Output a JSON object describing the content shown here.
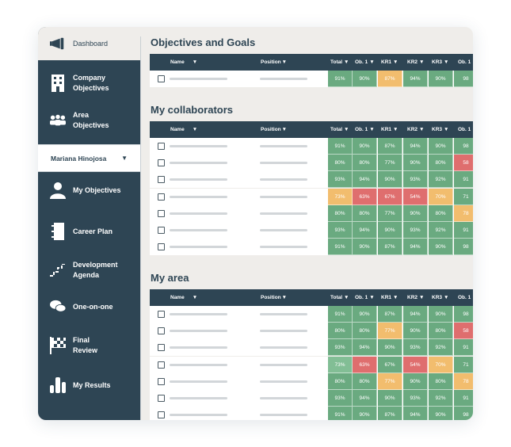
{
  "sidebar": {
    "dashboard": "Dashboard",
    "company_objectives": [
      "Company",
      "Objectives"
    ],
    "area_objectives": [
      "Area",
      "Objectives"
    ],
    "user_name": "Mariana Hinojosa",
    "my_objectives": "My Objectives",
    "career_plan": "Career Plan",
    "development_agenda": [
      "Development",
      "Agenda"
    ],
    "one_on_one": "One-on-one",
    "final_review": [
      "Final",
      "Review"
    ],
    "my_results": "My Results"
  },
  "columns": [
    "Name",
    "Position",
    "Total",
    "Ob. 1",
    "KR1",
    "KR2",
    "KR3",
    "Ob. 1"
  ],
  "sections": [
    {
      "title": "Objectives and Goals",
      "rows": [
        [
          "91%",
          "90%",
          "87%",
          "94%",
          "90%",
          "98"
        ]
      ],
      "colors": [
        [
          "g",
          "g",
          "y",
          "g",
          "g",
          "g"
        ]
      ]
    },
    {
      "title": "My collaborators",
      "rows": [
        [
          "91%",
          "90%",
          "87%",
          "94%",
          "90%",
          "98"
        ],
        [
          "80%",
          "80%",
          "77%",
          "90%",
          "80%",
          "58"
        ],
        [
          "93%",
          "94%",
          "90%",
          "93%",
          "92%",
          "91"
        ],
        [
          "73%",
          "63%",
          "67%",
          "54%",
          "70%",
          "71"
        ],
        [
          "80%",
          "80%",
          "77%",
          "90%",
          "80%",
          "78"
        ],
        [
          "93%",
          "94%",
          "90%",
          "93%",
          "92%",
          "91"
        ],
        [
          "91%",
          "90%",
          "87%",
          "94%",
          "90%",
          "98"
        ]
      ],
      "colors": [
        [
          "g",
          "g",
          "g",
          "g",
          "g",
          "g"
        ],
        [
          "g",
          "g",
          "g",
          "g",
          "g",
          "r"
        ],
        [
          "g",
          "g",
          "g",
          "g",
          "g",
          "g"
        ],
        [
          "y",
          "r",
          "r",
          "r",
          "y",
          "g"
        ],
        [
          "g",
          "g",
          "g",
          "g",
          "g",
          "y"
        ],
        [
          "g",
          "g",
          "g",
          "g",
          "g",
          "g"
        ],
        [
          "g",
          "g",
          "g",
          "g",
          "g",
          "g"
        ]
      ]
    },
    {
      "title": "My area",
      "rows": [
        [
          "91%",
          "90%",
          "87%",
          "94%",
          "90%",
          "98"
        ],
        [
          "80%",
          "80%",
          "77%",
          "90%",
          "80%",
          "58"
        ],
        [
          "93%",
          "94%",
          "90%",
          "93%",
          "92%",
          "91"
        ],
        [
          "73%",
          "63%",
          "67%",
          "54%",
          "70%",
          "71"
        ],
        [
          "80%",
          "80%",
          "77%",
          "90%",
          "80%",
          "78"
        ],
        [
          "93%",
          "94%",
          "90%",
          "93%",
          "92%",
          "91"
        ],
        [
          "91%",
          "90%",
          "87%",
          "94%",
          "90%",
          "98"
        ]
      ],
      "colors": [
        [
          "g",
          "g",
          "g",
          "g",
          "g",
          "g"
        ],
        [
          "g",
          "g",
          "y",
          "g",
          "g",
          "r"
        ],
        [
          "g",
          "g",
          "g",
          "g",
          "g",
          "g"
        ],
        [
          "lg",
          "r",
          "g",
          "r",
          "y",
          "g"
        ],
        [
          "g",
          "g",
          "y",
          "g",
          "g",
          "y"
        ],
        [
          "g",
          "g",
          "g",
          "g",
          "g",
          "g"
        ],
        [
          "g",
          "g",
          "g",
          "g",
          "g",
          "g"
        ]
      ]
    }
  ]
}
